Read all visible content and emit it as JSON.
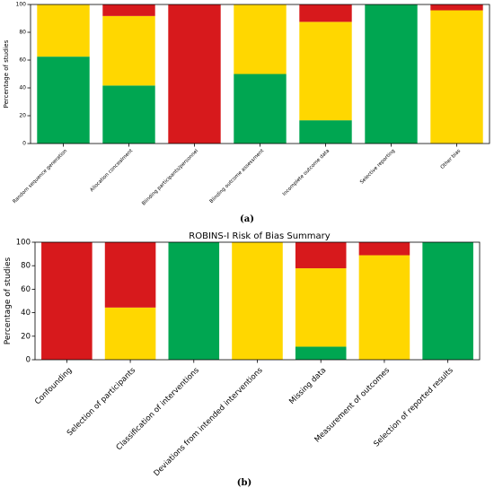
{
  "colors": {
    "low": "#00A651",
    "some": "#FFD700",
    "high": "#D7191C"
  },
  "chart_data": [
    {
      "type": "bar",
      "stacked": true,
      "panel_label": "(a)",
      "title": "",
      "ylabel": "Percentage of studies",
      "ylim": [
        0,
        100
      ],
      "yticks": [
        0,
        20,
        40,
        60,
        80,
        100
      ],
      "grid": false,
      "categories": [
        "Random sequence generation",
        "Allocation concealment",
        "Blinding participants/personnel",
        "Blinding outcome assessment",
        "Incomplete outcome data",
        "Selective reporting",
        "Other bias"
      ],
      "series": [
        {
          "color": "#00A651",
          "values": [
            62.5,
            41.7,
            0,
            50,
            16.7,
            100,
            0
          ]
        },
        {
          "color": "#FFD700",
          "values": [
            37.5,
            50,
            0,
            50,
            70.8,
            0,
            95.8
          ]
        },
        {
          "color": "#D7191C",
          "values": [
            0,
            8.3,
            100,
            0,
            12.5,
            0,
            4.2
          ]
        }
      ]
    },
    {
      "type": "bar",
      "stacked": true,
      "panel_label": "(b)",
      "title": "ROBINS-I Risk of Bias Summary",
      "ylabel": "Percentage of studies",
      "ylim": [
        0,
        100
      ],
      "yticks": [
        0,
        20,
        40,
        60,
        80,
        100
      ],
      "grid": false,
      "categories": [
        "Confounding",
        "Selection of participants",
        "Classification of interventions",
        "Deviations from intended interventions",
        "Missing data",
        "Measurement of outcomes",
        "Selection of reported results"
      ],
      "series": [
        {
          "color": "#00A651",
          "values": [
            0,
            0,
            100,
            0,
            11.1,
            0,
            100
          ]
        },
        {
          "color": "#FFD700",
          "values": [
            0,
            44.4,
            0,
            100,
            66.7,
            88.9,
            0
          ]
        },
        {
          "color": "#D7191C",
          "values": [
            100,
            55.6,
            0,
            0,
            22.2,
            11.1,
            0
          ]
        }
      ]
    }
  ]
}
